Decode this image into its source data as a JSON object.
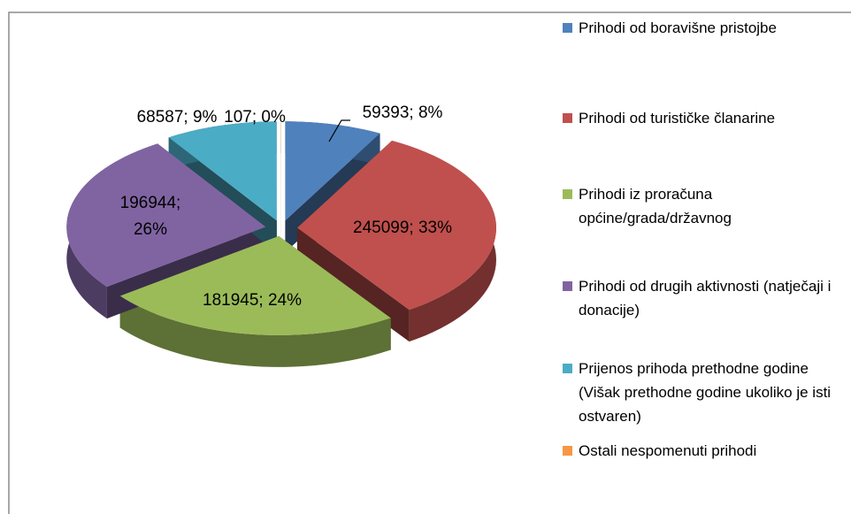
{
  "chart_data": {
    "type": "pie",
    "categories": [
      "Prihodi od boravišne pristojbe",
      "Prihodi od turističke članarine",
      "Prihodi iz proračuna općine/grada/državnog",
      "Prihodi od drugih aktivnosti (natječaji i donacije)",
      "Prijenos prihoda prethodne godine (Višak prethodne godine ukoliko je isti ostvaren)",
      "Ostali nespomenuti prihodi"
    ],
    "values": [
      59393,
      245099,
      181945,
      196944,
      68587,
      107
    ],
    "value_labels": [
      "59393; 8%",
      "245099; 33%",
      "181945; 24%",
      "196944; 26%",
      "68587; 9%",
      "107; 0%"
    ],
    "colors": [
      "#4f81bd",
      "#c0504d",
      "#9bbb59",
      "#8064a2",
      "#4bacc6",
      "#f79646"
    ],
    "legend": "right"
  }
}
